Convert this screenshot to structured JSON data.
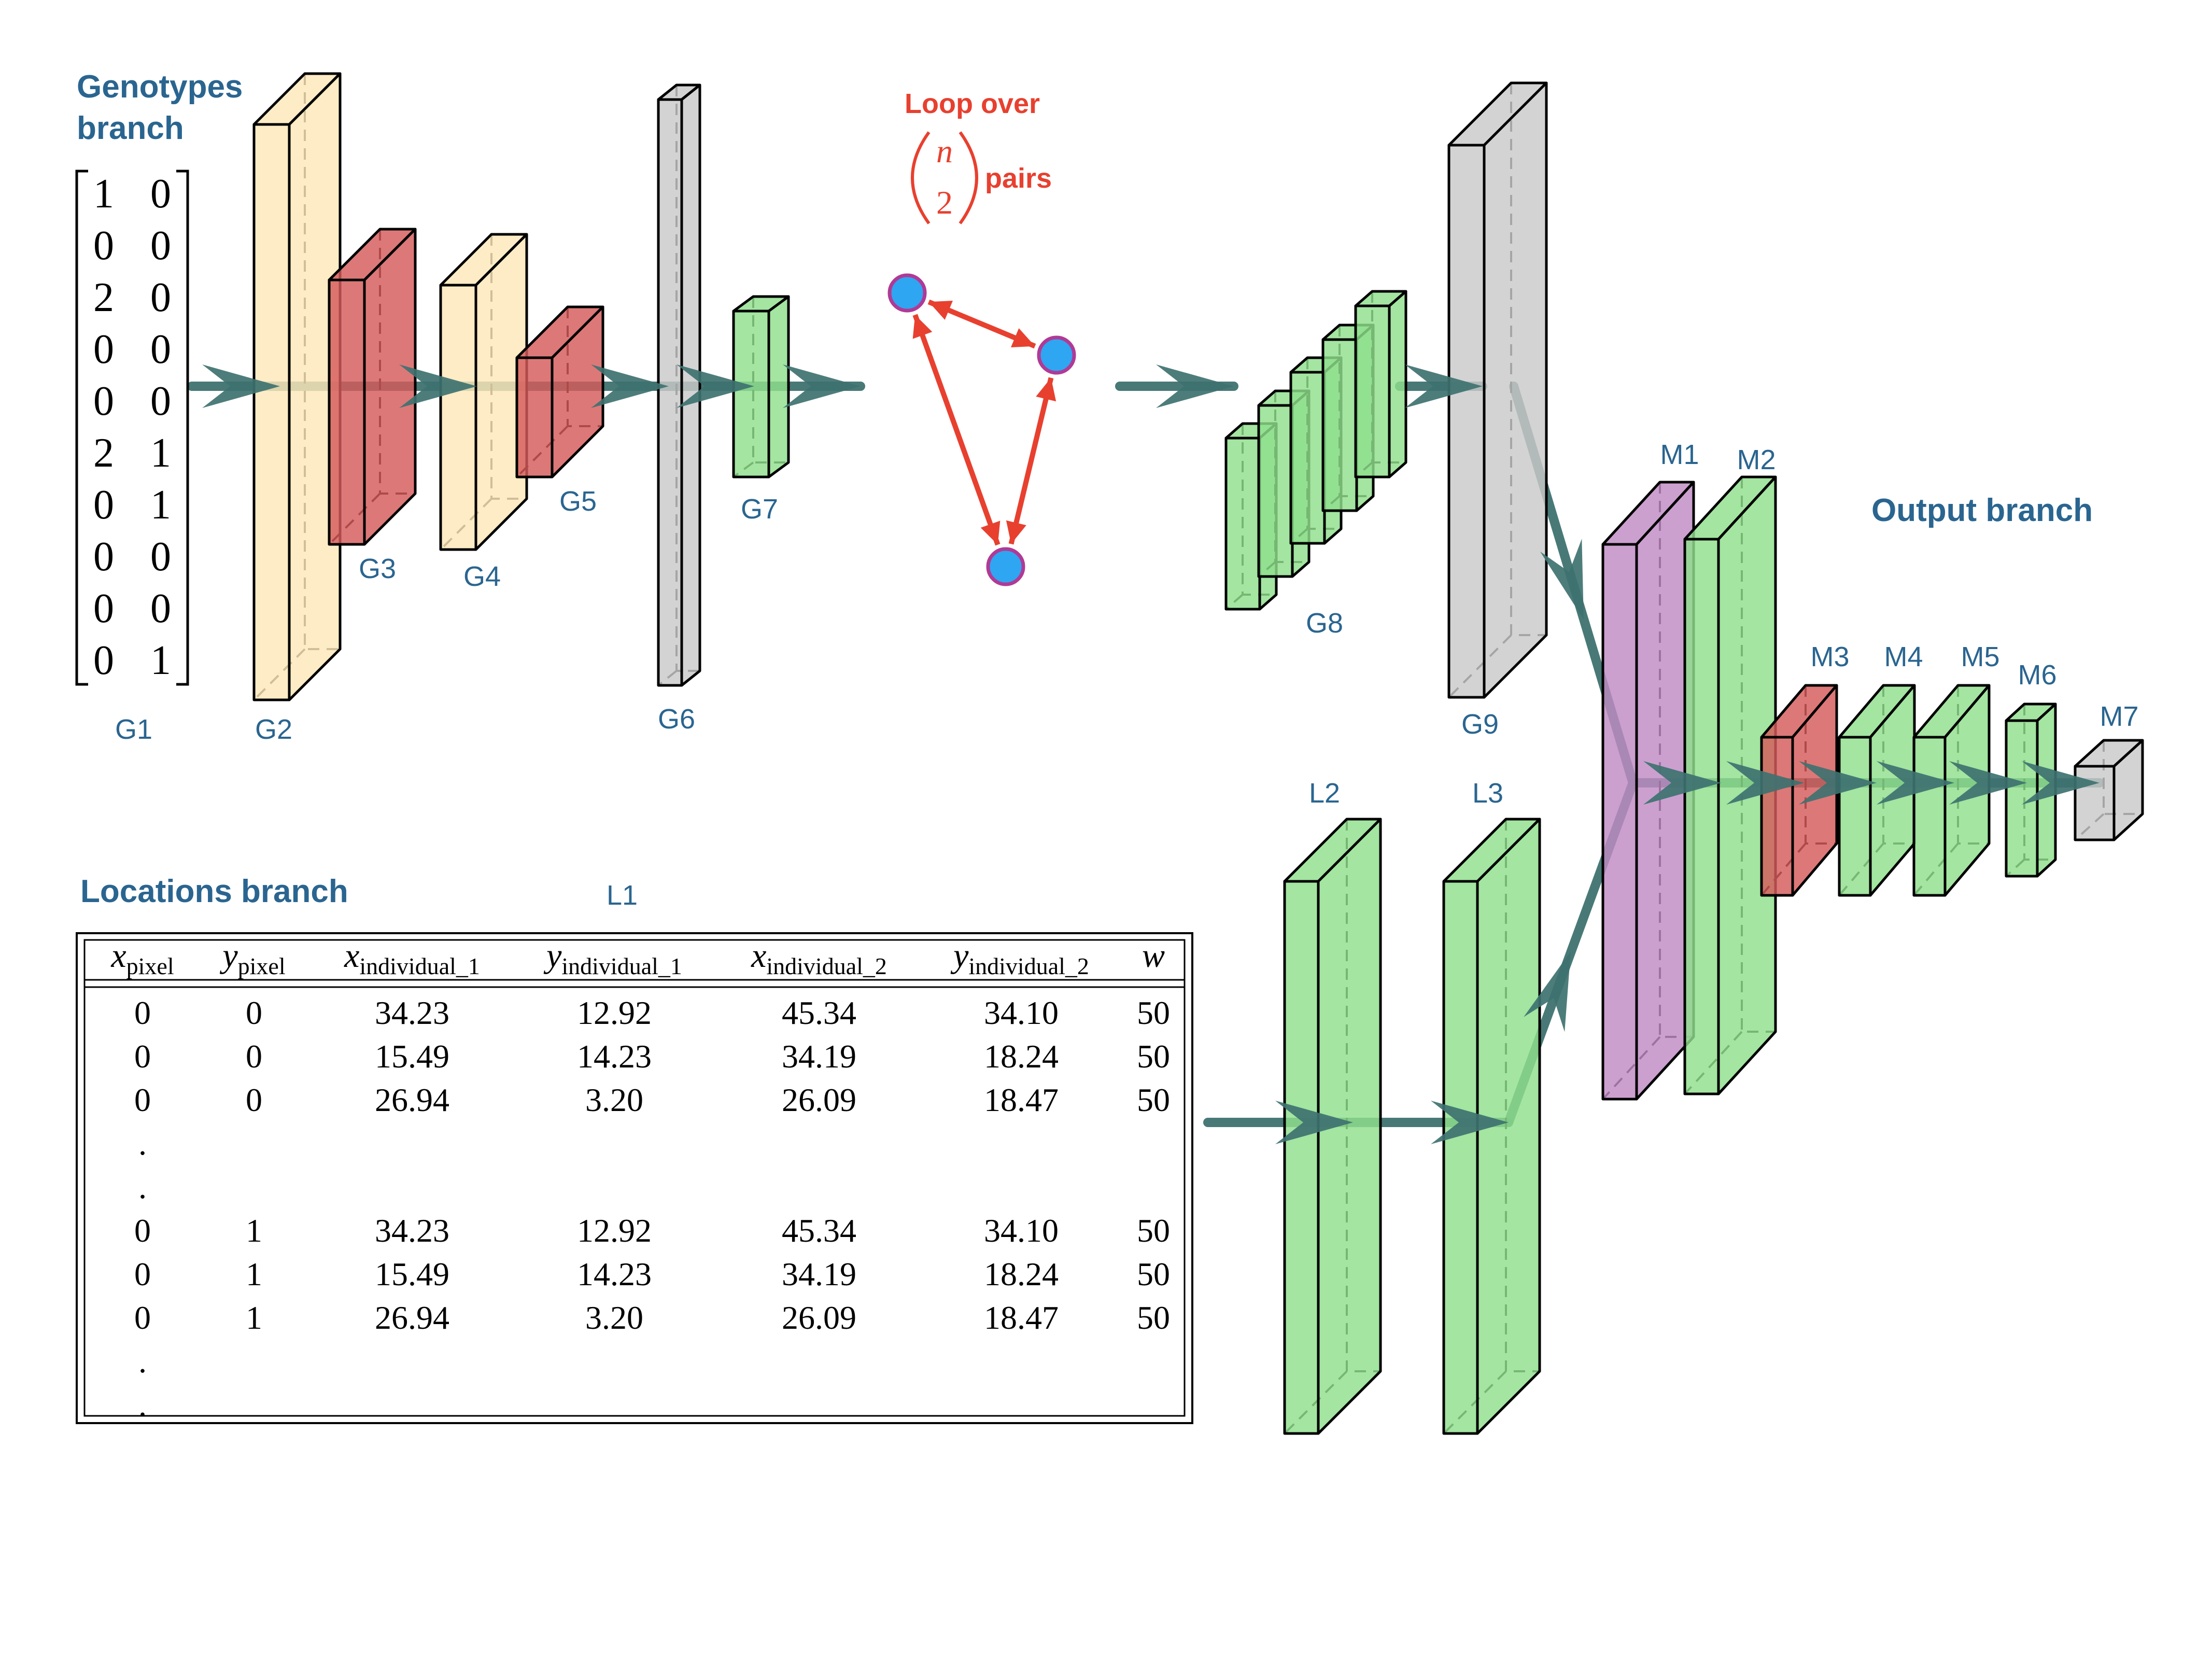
{
  "labels": {
    "genotypes_line1": "Genotypes",
    "genotypes_line2": "branch",
    "locations": "Locations branch",
    "output": "Output branch",
    "loop_line1": "Loop over",
    "loop_pairs": "pairs",
    "binom_top": "n",
    "binom_bottom": "2"
  },
  "colors": {
    "yellow": "#fde8b8",
    "red": "#d65a5a",
    "gray": "#c9c9c9",
    "green": "#8fdf8c",
    "purple": "#c08bc4",
    "arrow": "#3e7270",
    "loop": "#e8402f",
    "node": "#2ea6f2",
    "node_edge": "#b03a96",
    "text": "#2a6590"
  },
  "layers": [
    {
      "id": "G1",
      "label": "G1",
      "color": "none"
    },
    {
      "id": "G2",
      "label": "G2",
      "color": "yellow"
    },
    {
      "id": "G3",
      "label": "G3",
      "color": "red"
    },
    {
      "id": "G4",
      "label": "G4",
      "color": "yellow"
    },
    {
      "id": "G5",
      "label": "G5",
      "color": "red"
    },
    {
      "id": "G6",
      "label": "G6",
      "color": "gray"
    },
    {
      "id": "G7",
      "label": "G7",
      "color": "green"
    },
    {
      "id": "G8",
      "label": "G8",
      "color": "green"
    },
    {
      "id": "G9",
      "label": "G9",
      "color": "gray"
    },
    {
      "id": "L1",
      "label": "L1",
      "color": "none"
    },
    {
      "id": "L2",
      "label": "L2",
      "color": "green"
    },
    {
      "id": "L3",
      "label": "L3",
      "color": "green"
    },
    {
      "id": "M1",
      "label": "M1",
      "color": "purple"
    },
    {
      "id": "M2",
      "label": "M2",
      "color": "green"
    },
    {
      "id": "M3",
      "label": "M3",
      "color": "red"
    },
    {
      "id": "M4",
      "label": "M4",
      "color": "green"
    },
    {
      "id": "M5",
      "label": "M5",
      "color": "green"
    },
    {
      "id": "M6",
      "label": "M6",
      "color": "green"
    },
    {
      "id": "M7",
      "label": "M7",
      "color": "gray"
    }
  ],
  "genotype_matrix": [
    [
      "1",
      "0"
    ],
    [
      "0",
      "0"
    ],
    [
      "2",
      "0"
    ],
    [
      "0",
      "0"
    ],
    [
      "0",
      "0"
    ],
    [
      "2",
      "1"
    ],
    [
      "0",
      "1"
    ],
    [
      "0",
      "0"
    ],
    [
      "0",
      "0"
    ],
    [
      "0",
      "1"
    ]
  ],
  "locations_table": {
    "columns": [
      {
        "base": "x",
        "sub": "pixel"
      },
      {
        "base": "y",
        "sub": "pixel"
      },
      {
        "base": "x",
        "sub": "individual_1"
      },
      {
        "base": "y",
        "sub": "individual_1"
      },
      {
        "base": "x",
        "sub": "individual_2"
      },
      {
        "base": "y",
        "sub": "individual_2"
      },
      {
        "base": "w",
        "sub": ""
      }
    ],
    "rows": [
      [
        "0",
        "0",
        "34.23",
        "12.92",
        "45.34",
        "34.10",
        "50"
      ],
      [
        "0",
        "0",
        "15.49",
        "14.23",
        "34.19",
        "18.24",
        "50"
      ],
      [
        "0",
        "0",
        "26.94",
        "3.20",
        "26.09",
        "18.47",
        "50"
      ],
      [
        ".",
        "",
        "",
        "",
        "",
        "",
        ""
      ],
      [
        ".",
        "",
        "",
        "",
        "",
        "",
        ""
      ],
      [
        "0",
        "1",
        "34.23",
        "12.92",
        "45.34",
        "34.10",
        "50"
      ],
      [
        "0",
        "1",
        "15.49",
        "14.23",
        "34.19",
        "18.24",
        "50"
      ],
      [
        "0",
        "1",
        "26.94",
        "3.20",
        "26.09",
        "18.47",
        "50"
      ],
      [
        ".",
        "",
        "",
        "",
        "",
        "",
        ""
      ],
      [
        ".",
        "",
        "",
        "",
        "",
        "",
        ""
      ]
    ]
  }
}
